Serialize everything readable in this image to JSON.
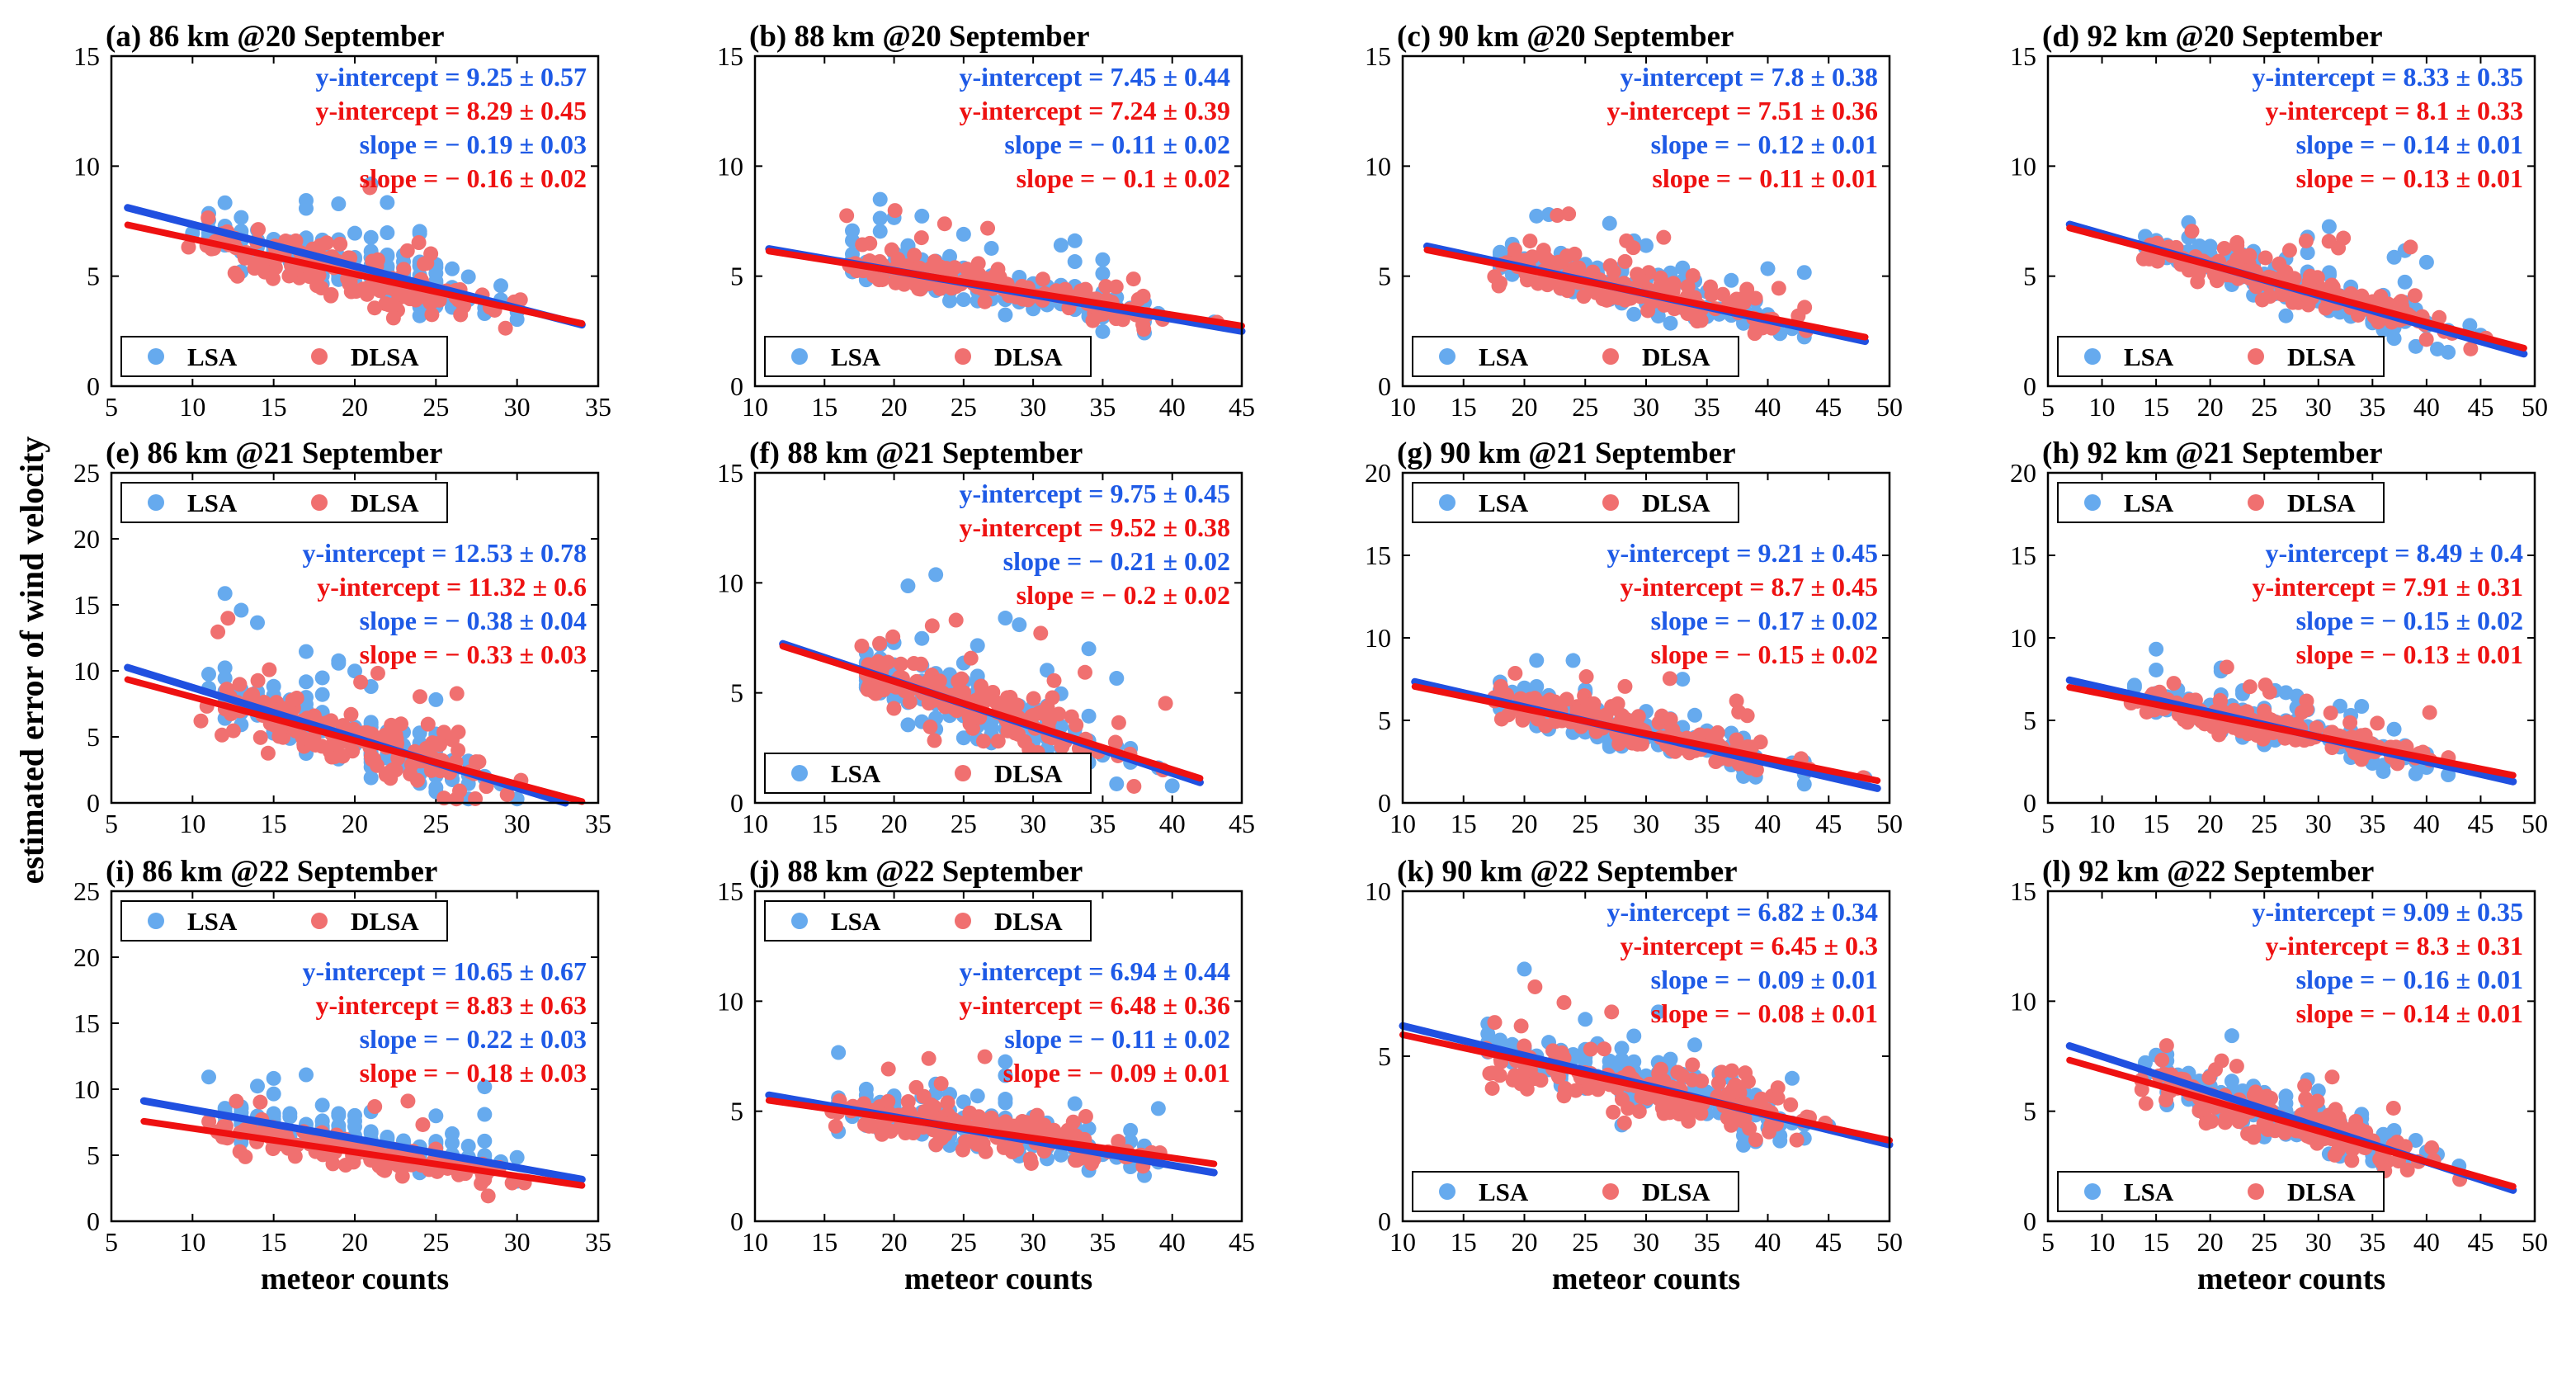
{
  "figure": {
    "ylabel": "estimated error of wind velocity",
    "colors": {
      "lsa_marker": "#66aaee",
      "dlsa_marker": "#f07070",
      "lsa_line": "#2050e0",
      "dlsa_line": "#ee1111",
      "lsa_text": "#1e5ae6",
      "dlsa_text": "#ee1111",
      "axis": "#000000"
    }
  },
  "chart_data": [
    {
      "type": "scatter",
      "title": "(a) 86 km @20 September",
      "xlabel": "",
      "xlim": [
        5,
        35
      ],
      "xticks": [
        5,
        10,
        15,
        20,
        25,
        30,
        35
      ],
      "ylim": [
        0,
        15
      ],
      "yticks": [
        0,
        5,
        10,
        15
      ],
      "legend_pos": "bottom-left",
      "legend": [
        "LSA",
        "DLSA"
      ],
      "annotation_pos": "top-right",
      "annotations": [
        "y-intercept = 9.25 ± 0.57",
        "y-intercept = 8.29 ± 0.45",
        "slope = − 0.19 ± 0.03",
        "slope = − 0.16 ± 0.02"
      ],
      "fits": {
        "LSA": {
          "intercept": 9.25,
          "slope": -0.19
        },
        "DLSA": {
          "intercept": 8.29,
          "slope": -0.16
        }
      },
      "fit_range": [
        6,
        34
      ],
      "point_count": [
        5.5,
        34
      ]
    },
    {
      "type": "scatter",
      "title": "(b) 88 km @20 September",
      "xlabel": "",
      "xlim": [
        10,
        45
      ],
      "xticks": [
        10,
        15,
        20,
        25,
        30,
        35,
        40,
        45
      ],
      "ylim": [
        0,
        15
      ],
      "yticks": [
        0,
        5,
        10,
        15
      ],
      "legend_pos": "bottom-left",
      "legend": [
        "LSA",
        "DLSA"
      ],
      "annotation_pos": "top-right",
      "annotations": [
        "y-intercept = 7.45 ± 0.44",
        "y-intercept = 7.24 ± 0.39",
        "slope = − 0.11 ± 0.02",
        "slope = − 0.1 ± 0.02"
      ],
      "fits": {
        "LSA": {
          "intercept": 7.45,
          "slope": -0.11
        },
        "DLSA": {
          "intercept": 7.24,
          "slope": -0.1
        }
      },
      "fit_range": [
        11,
        45
      ],
      "point_count": [
        11,
        45
      ]
    },
    {
      "type": "scatter",
      "title": "(c) 90 km @20 September",
      "xlabel": "",
      "xlim": [
        10,
        50
      ],
      "xticks": [
        10,
        15,
        20,
        25,
        30,
        35,
        40,
        45,
        50
      ],
      "ylim": [
        0,
        15
      ],
      "yticks": [
        0,
        5,
        10,
        15
      ],
      "legend_pos": "bottom-left",
      "legend": [
        "LSA",
        "DLSA"
      ],
      "annotation_pos": "top-right",
      "annotations": [
        "y-intercept = 7.8 ± 0.38",
        "y-intercept = 7.51 ± 0.36",
        "slope = − 0.12 ± 0.01",
        "slope = − 0.11 ± 0.01"
      ],
      "fits": {
        "LSA": {
          "intercept": 7.8,
          "slope": -0.12
        },
        "DLSA": {
          "intercept": 7.51,
          "slope": -0.11
        }
      },
      "fit_range": [
        12,
        48
      ],
      "point_count": [
        11,
        49
      ]
    },
    {
      "type": "scatter",
      "title": "(d) 92 km @20 September",
      "xlabel": "",
      "xlim": [
        5,
        50
      ],
      "xticks": [
        5,
        10,
        15,
        20,
        25,
        30,
        35,
        40,
        45,
        50
      ],
      "ylim": [
        0,
        15
      ],
      "yticks": [
        0,
        5,
        10,
        15
      ],
      "legend_pos": "bottom-left",
      "legend": [
        "LSA",
        "DLSA"
      ],
      "annotation_pos": "top-right",
      "annotations": [
        "y-intercept = 8.33 ± 0.35",
        "y-intercept = 8.1 ± 0.33",
        "slope = − 0.14 ± 0.01",
        "slope = − 0.13 ± 0.01"
      ],
      "fits": {
        "LSA": {
          "intercept": 8.33,
          "slope": -0.14
        },
        "DLSA": {
          "intercept": 8.1,
          "slope": -0.13
        }
      },
      "fit_range": [
        7,
        49
      ],
      "point_count": [
        7,
        49
      ]
    },
    {
      "type": "scatter",
      "title": "(e) 86 km @21 September",
      "xlabel": "",
      "xlim": [
        5,
        35
      ],
      "xticks": [
        5,
        10,
        15,
        20,
        25,
        30,
        35
      ],
      "ylim": [
        0,
        25
      ],
      "yticks": [
        0,
        5,
        10,
        15,
        20,
        25
      ],
      "legend_pos": "top-left",
      "legend": [
        "LSA",
        "DLSA"
      ],
      "annotation_pos": "upper-right",
      "annotations": [
        "y-intercept = 12.53 ± 0.78",
        "y-intercept = 11.32 ± 0.6",
        "slope = − 0.38 ± 0.04",
        "slope = − 0.33 ± 0.03"
      ],
      "fits": {
        "LSA": {
          "intercept": 12.53,
          "slope": -0.38
        },
        "DLSA": {
          "intercept": 11.32,
          "slope": -0.33
        }
      },
      "fit_range": [
        6,
        34
      ],
      "point_count": [
        6,
        34
      ]
    },
    {
      "type": "scatter",
      "title": "(f) 88 km @21 September",
      "xlabel": "",
      "xlim": [
        10,
        45
      ],
      "xticks": [
        10,
        15,
        20,
        25,
        30,
        35,
        40,
        45
      ],
      "ylim": [
        0,
        15
      ],
      "yticks": [
        0,
        5,
        10,
        15
      ],
      "legend_pos": "bottom-left",
      "legend": [
        "LSA",
        "DLSA"
      ],
      "annotation_pos": "top-right",
      "annotations": [
        "y-intercept = 9.75 ± 0.45",
        "y-intercept = 9.52 ± 0.38",
        "slope = − 0.21 ± 0.02",
        "slope = − 0.2 ± 0.02"
      ],
      "fits": {
        "LSA": {
          "intercept": 9.75,
          "slope": -0.21
        },
        "DLSA": {
          "intercept": 9.52,
          "slope": -0.2
        }
      },
      "fit_range": [
        12,
        42
      ],
      "point_count": [
        12,
        42
      ]
    },
    {
      "type": "scatter",
      "title": "(g) 90 km @21 September",
      "xlabel": "",
      "xlim": [
        10,
        50
      ],
      "xticks": [
        10,
        15,
        20,
        25,
        30,
        35,
        40,
        45,
        50
      ],
      "ylim": [
        0,
        20
      ],
      "yticks": [
        0,
        5,
        10,
        15,
        20
      ],
      "legend_pos": "top-left",
      "legend": [
        "LSA",
        "DLSA"
      ],
      "annotation_pos": "upper-right",
      "annotations": [
        "y-intercept = 9.21 ± 0.45",
        "y-intercept = 8.7 ± 0.45",
        "slope = − 0.17 ± 0.02",
        "slope = − 0.15 ± 0.02"
      ],
      "fits": {
        "LSA": {
          "intercept": 9.21,
          "slope": -0.17
        },
        "DLSA": {
          "intercept": 8.7,
          "slope": -0.15
        }
      },
      "fit_range": [
        11,
        49
      ],
      "point_count": [
        11,
        49
      ]
    },
    {
      "type": "scatter",
      "title": "(h) 92 km @21 September",
      "xlabel": "",
      "xlim": [
        5,
        50
      ],
      "xticks": [
        5,
        10,
        15,
        20,
        25,
        30,
        35,
        40,
        45,
        50
      ],
      "ylim": [
        0,
        20
      ],
      "yticks": [
        0,
        5,
        10,
        15,
        20
      ],
      "legend_pos": "top-left",
      "legend": [
        "LSA",
        "DLSA"
      ],
      "annotation_pos": "upper-right",
      "annotations": [
        "y-intercept = 8.49 ± 0.4",
        "y-intercept = 7.91 ± 0.31",
        "slope = − 0.15 ± 0.02",
        "slope = − 0.13 ± 0.01"
      ],
      "fits": {
        "LSA": {
          "intercept": 8.49,
          "slope": -0.15
        },
        "DLSA": {
          "intercept": 7.91,
          "slope": -0.13
        }
      },
      "fit_range": [
        7,
        48
      ],
      "point_count": [
        6,
        48
      ]
    },
    {
      "type": "scatter",
      "title": "(i) 86 km @22 September",
      "xlabel": "meteor counts",
      "xlim": [
        5,
        35
      ],
      "xticks": [
        5,
        10,
        15,
        20,
        25,
        30,
        35
      ],
      "ylim": [
        0,
        25
      ],
      "yticks": [
        0,
        5,
        10,
        15,
        20,
        25
      ],
      "legend_pos": "top-left",
      "legend": [
        "LSA",
        "DLSA"
      ],
      "annotation_pos": "upper-right",
      "annotations": [
        "y-intercept = 10.65 ± 0.67",
        "y-intercept = 8.83 ± 0.63",
        "slope = − 0.22 ± 0.03",
        "slope = − 0.18 ± 0.03"
      ],
      "fits": {
        "LSA": {
          "intercept": 10.65,
          "slope": -0.22
        },
        "DLSA": {
          "intercept": 8.83,
          "slope": -0.18
        }
      },
      "fit_range": [
        7,
        34
      ],
      "point_count": [
        7,
        34
      ]
    },
    {
      "type": "scatter",
      "title": "(j) 88 km @22 September",
      "xlabel": "meteor counts",
      "xlim": [
        10,
        45
      ],
      "xticks": [
        10,
        15,
        20,
        25,
        30,
        35,
        40,
        45
      ],
      "ylim": [
        0,
        15
      ],
      "yticks": [
        0,
        5,
        10,
        15
      ],
      "legend_pos": "top-left",
      "legend": [
        "LSA",
        "DLSA"
      ],
      "annotation_pos": "upper-right",
      "annotations": [
        "y-intercept = 6.94 ± 0.44",
        "y-intercept = 6.48 ± 0.36",
        "slope = − 0.11 ± 0.02",
        "slope = − 0.09 ± 0.01"
      ],
      "fits": {
        "LSA": {
          "intercept": 6.94,
          "slope": -0.11
        },
        "DLSA": {
          "intercept": 6.48,
          "slope": -0.09
        }
      },
      "fit_range": [
        11,
        43
      ],
      "point_count": [
        11,
        43
      ]
    },
    {
      "type": "scatter",
      "title": "(k) 90 km @22 September",
      "xlabel": "meteor counts",
      "xlim": [
        10,
        50
      ],
      "xticks": [
        10,
        15,
        20,
        25,
        30,
        35,
        40,
        45,
        50
      ],
      "ylim": [
        0,
        10
      ],
      "yticks": [
        0,
        5,
        10
      ],
      "legend_pos": "bottom-left",
      "legend": [
        "LSA",
        "DLSA"
      ],
      "annotation_pos": "top-right",
      "annotations": [
        "y-intercept = 6.82 ± 0.34",
        "y-intercept = 6.45 ± 0.3",
        "slope = − 0.09 ± 0.01",
        "slope = − 0.08 ± 0.01"
      ],
      "fits": {
        "LSA": {
          "intercept": 6.82,
          "slope": -0.09
        },
        "DLSA": {
          "intercept": 6.45,
          "slope": -0.08
        }
      },
      "fit_range": [
        10,
        50
      ],
      "point_count": [
        10,
        50
      ]
    },
    {
      "type": "scatter",
      "title": "(l) 92 km @22 September",
      "xlabel": "meteor counts",
      "xlim": [
        5,
        50
      ],
      "xticks": [
        5,
        10,
        15,
        20,
        25,
        30,
        35,
        40,
        45,
        50
      ],
      "ylim": [
        0,
        15
      ],
      "yticks": [
        0,
        5,
        10,
        15
      ],
      "legend_pos": "bottom-left",
      "legend": [
        "LSA",
        "DLSA"
      ],
      "annotation_pos": "top-right",
      "annotations": [
        "y-intercept = 9.09 ± 0.35",
        "y-intercept = 8.3 ± 0.31",
        "slope = − 0.16 ± 0.01",
        "slope = − 0.14 ± 0.01"
      ],
      "fits": {
        "LSA": {
          "intercept": 9.09,
          "slope": -0.16
        },
        "DLSA": {
          "intercept": 8.3,
          "slope": -0.14
        }
      },
      "fit_range": [
        7,
        48
      ],
      "point_count": [
        7,
        48
      ]
    }
  ]
}
